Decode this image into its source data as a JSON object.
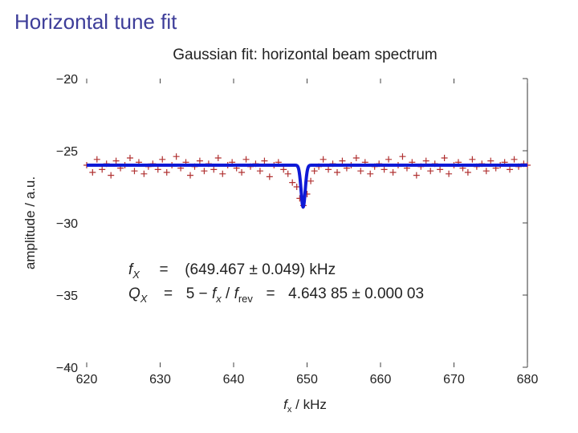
{
  "slide": {
    "title": "Horizontal tune fit"
  },
  "chart_data": {
    "type": "scatter",
    "title": "Gaussian fit: horizontal beam spectrum",
    "xlabel_var": "f",
    "xlabel_sub": "x",
    "xlabel_unit": "kHz",
    "ylabel": "amplitude / a.u.",
    "xlim": [
      620,
      680
    ],
    "ylim": [
      -40,
      -20
    ],
    "x_ticks": [
      620,
      630,
      640,
      650,
      660,
      670,
      680
    ],
    "x_tick_labels": [
      "620",
      "630",
      "640",
      "650",
      "660",
      "670",
      "680"
    ],
    "y_ticks": [
      -20,
      -25,
      -30,
      -35,
      -40
    ],
    "y_tick_labels": [
      "−20",
      "−25",
      "−30",
      "−35",
      "−40"
    ],
    "grid": false,
    "series": [
      {
        "kind": "markers",
        "marker": "+",
        "color": "#b03030",
        "x": [
          620.0,
          620.8,
          621.4,
          622.1,
          622.7,
          623.3,
          624.0,
          624.6,
          625.2,
          625.9,
          626.5,
          627.1,
          627.8,
          628.4,
          629.0,
          629.7,
          630.3,
          630.9,
          631.6,
          632.2,
          632.8,
          633.5,
          634.1,
          634.7,
          635.4,
          636.0,
          636.6,
          637.3,
          637.9,
          638.5,
          639.2,
          639.8,
          640.4,
          641.1,
          641.7,
          642.3,
          643.0,
          643.6,
          644.2,
          644.9,
          645.5,
          646.1,
          646.8,
          647.4,
          648.0,
          648.6,
          649.0,
          649.5,
          650.0,
          650.5,
          651.0,
          651.6,
          652.2,
          652.9,
          653.5,
          654.1,
          654.8,
          655.4,
          656.0,
          656.7,
          657.3,
          657.9,
          658.6,
          659.2,
          659.8,
          660.5,
          661.1,
          661.7,
          662.4,
          663.0,
          663.6,
          664.3,
          664.9,
          665.5,
          666.2,
          666.8,
          667.4,
          668.1,
          668.7,
          669.3,
          670.0,
          670.6,
          671.2,
          671.9,
          672.5,
          673.1,
          673.8,
          674.4,
          675.0,
          675.7,
          676.3,
          676.9,
          677.6,
          678.2,
          678.8,
          679.5,
          680.0
        ],
        "y": [
          -26.0,
          -26.5,
          -25.6,
          -26.3,
          -25.9,
          -26.7,
          -25.7,
          -26.2,
          -26.0,
          -25.5,
          -26.4,
          -25.8,
          -26.6,
          -26.1,
          -25.9,
          -26.3,
          -25.6,
          -26.5,
          -26.0,
          -25.4,
          -26.2,
          -25.8,
          -26.7,
          -26.1,
          -25.7,
          -26.4,
          -25.9,
          -26.3,
          -25.5,
          -26.6,
          -26.0,
          -25.8,
          -26.2,
          -26.5,
          -25.6,
          -26.1,
          -25.9,
          -26.4,
          -25.7,
          -26.8,
          -26.0,
          -25.8,
          -26.3,
          -26.6,
          -27.2,
          -27.5,
          -28.3,
          -28.8,
          -28.0,
          -27.1,
          -26.4,
          -26.1,
          -25.6,
          -26.3,
          -25.9,
          -26.5,
          -25.7,
          -26.2,
          -26.0,
          -25.5,
          -26.4,
          -25.8,
          -26.6,
          -26.1,
          -25.9,
          -26.3,
          -25.6,
          -26.5,
          -26.0,
          -25.4,
          -26.2,
          -25.8,
          -26.7,
          -26.1,
          -25.7,
          -26.4,
          -25.9,
          -26.3,
          -25.5,
          -26.6,
          -26.0,
          -25.8,
          -26.2,
          -26.5,
          -25.6,
          -26.1,
          -25.9,
          -26.4,
          -25.7,
          -26.2,
          -26.0,
          -25.8,
          -26.3,
          -25.6,
          -26.1,
          -25.9,
          -26.0
        ]
      },
      {
        "kind": "line",
        "color": "#0f1ad6",
        "fit": {
          "baseline": -26.0,
          "amplitude": -2.9,
          "center": 649.467,
          "sigma": 0.28
        }
      }
    ],
    "annotation": {
      "line1": {
        "var": "f",
        "sub": "X",
        "eq": "=",
        "open": "(",
        "value": "649.467",
        "pm": "±",
        "err": "0.049",
        "close": ")",
        "unit": "kHz"
      },
      "line2": {
        "var": "Q",
        "sub": "X",
        "eq": "=",
        "const": "5",
        "minus": "−",
        "fvar": "f",
        "fsub": "x",
        "slash": "/",
        "rvar": "f",
        "rsub": "rev",
        "eq2": "=",
        "value": "4.643 85",
        "pm": "±",
        "err": "0.000 03"
      }
    }
  }
}
